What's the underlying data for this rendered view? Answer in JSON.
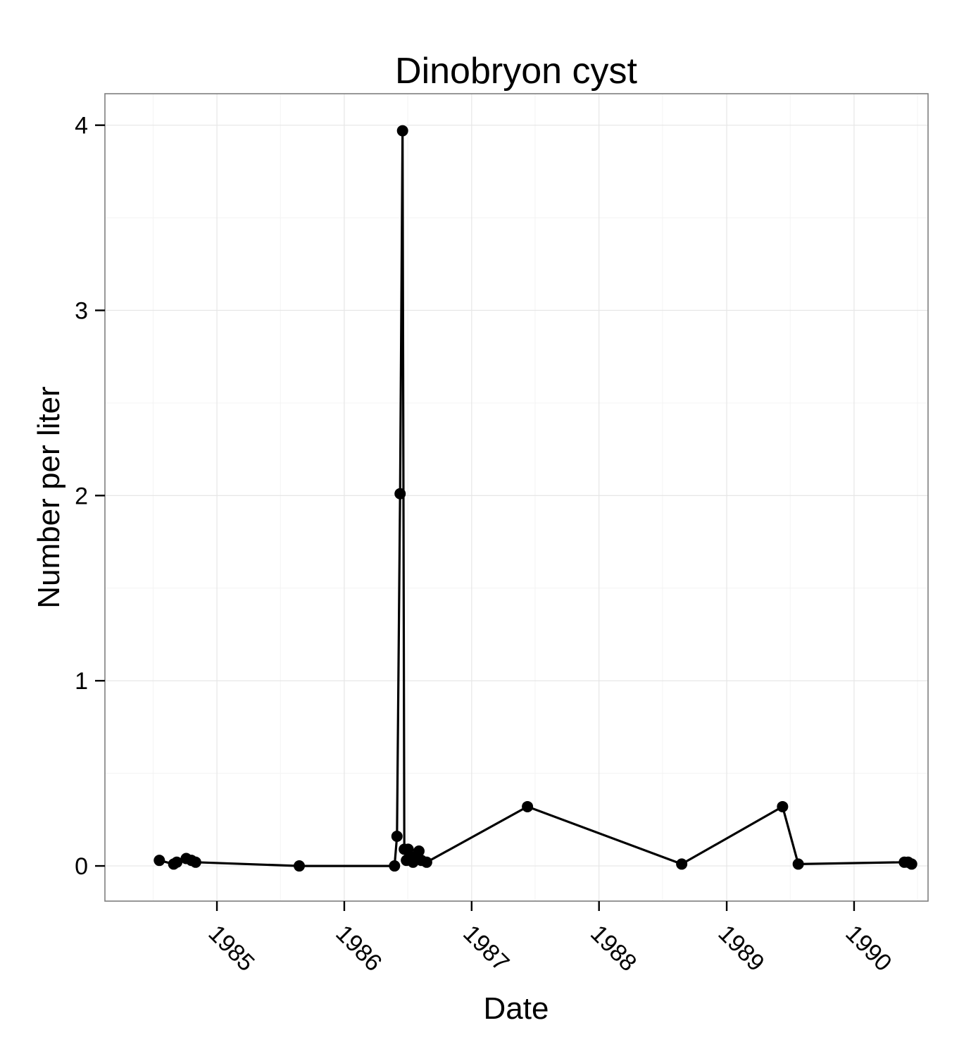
{
  "chart_data": {
    "type": "line",
    "title": "Dinobryon cyst",
    "xlabel": "Date",
    "ylabel": "Number per liter",
    "x_axis_type": "date",
    "xlim": [
      "1984-02-15",
      "1990-08-01"
    ],
    "ylim": [
      -0.19,
      4.17
    ],
    "x_ticks": [
      {
        "value": "1985-01-01",
        "label": "1985"
      },
      {
        "value": "1986-01-01",
        "label": "1986"
      },
      {
        "value": "1987-01-01",
        "label": "1987"
      },
      {
        "value": "1988-01-01",
        "label": "1988"
      },
      {
        "value": "1989-01-01",
        "label": "1989"
      },
      {
        "value": "1990-01-01",
        "label": "1990"
      }
    ],
    "y_ticks": [
      {
        "value": 0,
        "label": "0"
      },
      {
        "value": 1,
        "label": "1"
      },
      {
        "value": 2,
        "label": "2"
      },
      {
        "value": 3,
        "label": "3"
      },
      {
        "value": 4,
        "label": "4"
      }
    ],
    "x_tick_label_rotation": "45 degrees clockwise",
    "grid": true,
    "legend": "none",
    "series": [
      {
        "color": "#000000",
        "points": [
          {
            "x": "1984-07-20",
            "y": 0.03
          },
          {
            "x": "1984-08-30",
            "y": 0.01
          },
          {
            "x": "1984-09-08",
            "y": 0.02
          },
          {
            "x": "1984-10-05",
            "y": 0.04
          },
          {
            "x": "1984-10-20",
            "y": 0.03
          },
          {
            "x": "1984-11-01",
            "y": 0.02
          },
          {
            "x": "1985-08-25",
            "y": 0.0
          },
          {
            "x": "1986-05-25",
            "y": 0.0
          },
          {
            "x": "1986-06-01",
            "y": 0.16
          },
          {
            "x": "1986-06-10",
            "y": 2.01
          },
          {
            "x": "1986-06-17",
            "y": 3.97
          },
          {
            "x": "1986-06-22",
            "y": 0.09
          },
          {
            "x": "1986-06-28",
            "y": 0.03
          },
          {
            "x": "1986-07-03",
            "y": 0.09
          },
          {
            "x": "1986-07-10",
            "y": 0.04
          },
          {
            "x": "1986-07-17",
            "y": 0.02
          },
          {
            "x": "1986-07-25",
            "y": 0.05
          },
          {
            "x": "1986-08-03",
            "y": 0.08
          },
          {
            "x": "1986-08-10",
            "y": 0.03
          },
          {
            "x": "1986-08-25",
            "y": 0.02
          },
          {
            "x": "1987-06-10",
            "y": 0.32
          },
          {
            "x": "1988-08-25",
            "y": 0.01
          },
          {
            "x": "1989-06-10",
            "y": 0.32
          },
          {
            "x": "1989-07-25",
            "y": 0.01
          },
          {
            "x": "1990-05-25",
            "y": 0.02
          },
          {
            "x": "1990-06-05",
            "y": 0.02
          },
          {
            "x": "1990-06-15",
            "y": 0.01
          }
        ]
      }
    ]
  }
}
